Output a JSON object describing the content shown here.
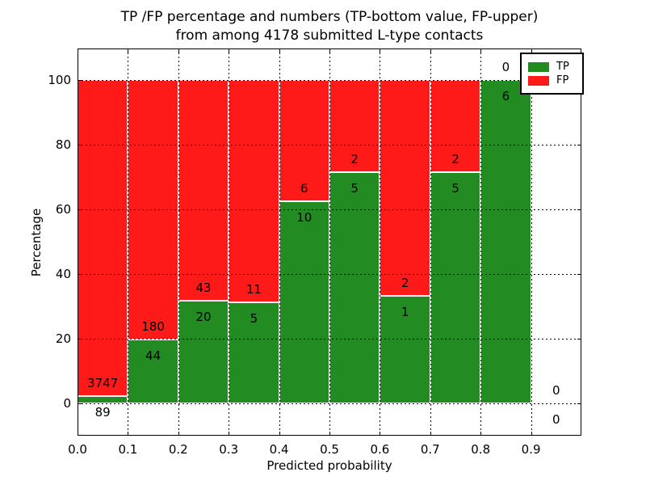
{
  "title": {
    "line1": "TP /FP percentage and numbers (TP-bottom value, FP-upper)",
    "line2": "from among 4178 submitted L-type contacts"
  },
  "axes": {
    "xlabel": "Predicted probability",
    "ylabel": "Percentage",
    "xtick_labels": [
      "0.0",
      "0.1",
      "0.2",
      "0.3",
      "0.4",
      "0.5",
      "0.6",
      "0.7",
      "0.8",
      "0.9"
    ],
    "ytick_labels": [
      "0",
      "20",
      "40",
      "60",
      "80",
      "100"
    ],
    "yticks": [
      0,
      20,
      40,
      60,
      80,
      100
    ],
    "xlim": [
      0.0,
      1.0
    ],
    "ylim": [
      -10,
      109.75
    ],
    "grid": "dotted both axes, drawn over bars"
  },
  "legend": {
    "position": "upper right",
    "entries": [
      {
        "label": "TP",
        "color": "#228b22"
      },
      {
        "label": "FP",
        "color": "#ff1a1a"
      }
    ]
  },
  "chart_data": {
    "type": "bar",
    "stacked": true,
    "normalized": "each bin scaled to 100%",
    "title": "TP /FP percentage and numbers (TP-bottom value, FP-upper) from among 4178 submitted L-type contacts",
    "xlabel": "Predicted probability",
    "ylabel": "Percentage",
    "total_contacts": 4178,
    "bin_edges": [
      0.0,
      0.1,
      0.2,
      0.3,
      0.4,
      0.5,
      0.6,
      0.7,
      0.8,
      0.9,
      1.0
    ],
    "categories": [
      "0.0-0.1",
      "0.1-0.2",
      "0.2-0.3",
      "0.3-0.4",
      "0.4-0.5",
      "0.5-0.6",
      "0.6-0.7",
      "0.7-0.8",
      "0.8-0.9",
      "0.9-1.0"
    ],
    "series": [
      {
        "name": "TP",
        "color": "#228b22",
        "counts": [
          89,
          44,
          20,
          5,
          10,
          5,
          1,
          5,
          6,
          0
        ]
      },
      {
        "name": "FP",
        "color": "#ff1a1a",
        "counts": [
          3747,
          180,
          43,
          11,
          6,
          2,
          2,
          2,
          0,
          0
        ]
      }
    ],
    "tp_percent_of_bin": [
      2.32,
      19.64,
      31.75,
      31.25,
      62.5,
      71.43,
      33.33,
      71.43,
      100.0,
      0.0
    ]
  },
  "colors": {
    "tp": "#228b22",
    "fp": "#ff1a1a",
    "bar_edge": "#ffffff",
    "grid": "#000000",
    "axis": "#000000",
    "text": "#000000",
    "background": "#ffffff"
  }
}
